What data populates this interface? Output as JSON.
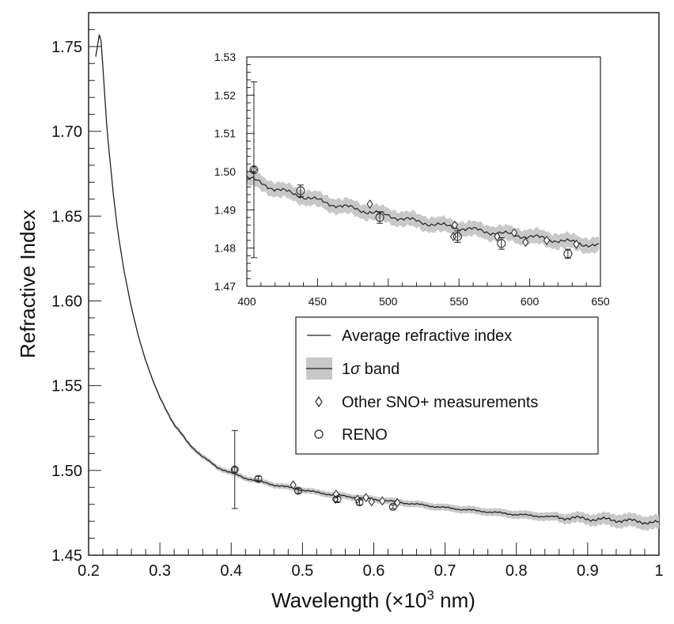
{
  "chart_data": [
    {
      "type": "line",
      "xlabel": "Wavelength (×10³ nm)",
      "xlabel_parts": {
        "base": "Wavelength (×10",
        "sup": "3",
        "unit": " nm)"
      },
      "ylabel": "Refractive Index",
      "xlim": [
        0.2,
        1.0
      ],
      "ylim": [
        1.45,
        1.77
      ],
      "xticks": [
        0.2,
        0.3,
        0.4,
        0.5,
        0.6,
        0.7,
        0.8,
        0.9,
        1.0
      ],
      "xtick_labels": [
        "0.2",
        "0.3",
        "0.4",
        "0.5",
        "0.6",
        "0.7",
        "0.8",
        "0.9",
        "1"
      ],
      "yticks": [
        1.45,
        1.5,
        1.55,
        1.6,
        1.65,
        1.7,
        1.75
      ],
      "ytick_labels": [
        "1.45",
        "1.50",
        "1.55",
        "1.60",
        "1.65",
        "1.70",
        "1.75"
      ],
      "series": [
        {
          "name": "Average refractive index",
          "x": [
            0.21,
            0.215,
            0.218,
            0.222,
            0.226,
            0.23,
            0.235,
            0.24,
            0.245,
            0.25,
            0.26,
            0.27,
            0.28,
            0.29,
            0.3,
            0.32,
            0.34,
            0.36,
            0.38,
            0.4,
            0.42,
            0.44,
            0.46,
            0.48,
            0.5,
            0.52,
            0.54,
            0.56,
            0.58,
            0.6,
            0.62,
            0.64,
            0.66,
            0.68,
            0.7,
            0.75,
            0.8,
            0.85,
            0.9,
            0.95,
            1.0
          ],
          "y": [
            1.744,
            1.757,
            1.752,
            1.725,
            1.7,
            1.683,
            1.662,
            1.644,
            1.63,
            1.617,
            1.596,
            1.579,
            1.565,
            1.553,
            1.543,
            1.527,
            1.516,
            1.508,
            1.502,
            1.4985,
            1.4955,
            1.4935,
            1.4915,
            1.49,
            1.4885,
            1.487,
            1.4858,
            1.4848,
            1.4838,
            1.483,
            1.482,
            1.481,
            1.48,
            1.479,
            1.478,
            1.476,
            1.474,
            1.4725,
            1.4715,
            1.4705,
            1.469
          ]
        },
        {
          "name": "1σ band",
          "x": [
            0.25,
            0.4,
            0.55,
            0.7,
            0.85,
            0.95,
            1.0
          ],
          "halfwidth": [
            0.001,
            0.0015,
            0.0018,
            0.002,
            0.0025,
            0.004,
            0.004
          ]
        },
        {
          "name": "Other SNO+ measurements",
          "x": [
            0.405,
            0.487,
            0.546,
            0.547,
            0.577,
            0.589,
            0.597,
            0.612,
            0.633
          ],
          "y": [
            1.5005,
            1.4915,
            1.483,
            1.486,
            1.483,
            1.484,
            1.4815,
            1.482,
            1.481
          ]
        },
        {
          "name": "RENO",
          "x": [
            0.405,
            0.438,
            0.494,
            0.549,
            0.58,
            0.627
          ],
          "y": [
            1.5005,
            1.495,
            1.488,
            1.483,
            1.4812,
            1.4785
          ],
          "err": [
            0.023,
            0.0015,
            0.0015,
            0.0015,
            0.0015,
            0.0012
          ]
        }
      ]
    },
    {
      "type": "line",
      "name": "inset",
      "xlim": [
        400,
        650
      ],
      "ylim": [
        1.47,
        1.53
      ],
      "xticks": [
        400,
        450,
        500,
        550,
        600,
        650
      ],
      "xtick_labels": [
        "400",
        "450",
        "500",
        "550",
        "600",
        "650"
      ],
      "yticks": [
        1.47,
        1.48,
        1.49,
        1.5,
        1.51,
        1.52,
        1.53
      ],
      "ytick_labels": [
        "1.47",
        "1.48",
        "1.49",
        "1.50",
        "1.51",
        "1.52",
        "1.53"
      ]
    }
  ],
  "legend": {
    "items": [
      {
        "label": "Average refractive index"
      },
      {
        "label_prefix": "1",
        "label_sigma": "σ",
        "label_suffix": " band"
      },
      {
        "label": "Other SNO+ measurements"
      },
      {
        "label": "RENO"
      }
    ]
  },
  "colors": {
    "line": "#222222",
    "band": "#c8c8c8",
    "axis": "#222222"
  }
}
